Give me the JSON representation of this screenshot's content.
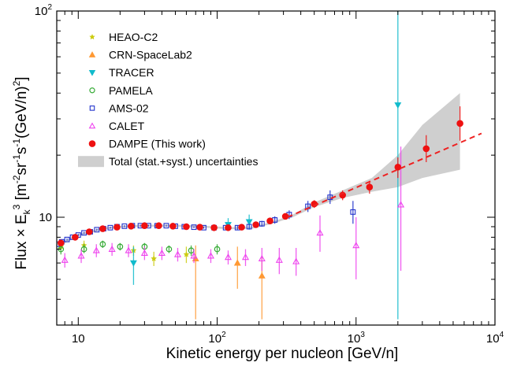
{
  "chart_data": {
    "type": "scatter",
    "title": "",
    "xlabel": "Kinetic energy per nucleon [GeV/n]",
    "ylabel": "Flux × E_k^3 [m^-2 sr^-1 s^-1 (GeV/n)^2]",
    "ylabel_parts": [
      "Flux × E",
      "k",
      "3",
      " [m",
      "-2",
      "sr",
      "-1",
      "s",
      "-1",
      "(GeV/n)",
      "2",
      "]"
    ],
    "xscale": "log",
    "yscale": "log",
    "xlim": [
      7,
      10000
    ],
    "ylim": [
      3,
      100
    ],
    "x_ticks": [
      {
        "value": 10,
        "label": "10"
      },
      {
        "value": 100,
        "label": "10",
        "sup": "2"
      },
      {
        "value": 1000,
        "label": "10",
        "sup": "3"
      },
      {
        "value": 10000,
        "label": "10",
        "sup": "4"
      }
    ],
    "y_ticks": [
      {
        "value": 10,
        "label": "10"
      },
      {
        "value": 100,
        "label": "10",
        "sup": "2"
      }
    ],
    "legend_position": "top-left",
    "uncertainty_band": {
      "label": "Total (stat.+syst.) uncertainties",
      "color": "#cfcfcf",
      "x": [
        7.5,
        10,
        15,
        20,
        30,
        50,
        80,
        120,
        180,
        250,
        350,
        500,
        800,
        1300,
        2000,
        3000,
        5600
      ],
      "lower": [
        7.3,
        8.1,
        8.7,
        8.9,
        9.0,
        9.0,
        8.9,
        8.75,
        8.8,
        9.3,
        10.0,
        11.2,
        12.4,
        13.3,
        14.0,
        15.5,
        17.0
      ],
      "upper": [
        7.5,
        8.3,
        8.9,
        9.1,
        9.2,
        9.2,
        9.1,
        8.95,
        9.0,
        9.5,
        10.3,
        11.8,
        13.5,
        15.5,
        20.0,
        28.0,
        40.0
      ]
    },
    "fit_line": {
      "color": "#ee2222",
      "x": [
        320,
        8000
      ],
      "y": [
        10.0,
        25.5
      ]
    },
    "series": [
      {
        "name": "HEAO-C2",
        "marker": "star",
        "color": "#cccc11",
        "points": [
          [
            7.5,
            7.2,
            6.9,
            7.5
          ],
          [
            11,
            7.3,
            6.9,
            7.7
          ],
          [
            25,
            6.9,
            6.5,
            7.3
          ],
          [
            35,
            6.3,
            5.8,
            6.8
          ],
          [
            60,
            6.6,
            6.0,
            7.2
          ]
        ]
      },
      {
        "name": "CRN-SpaceLab2",
        "marker": "triangle-up",
        "color": "#ff9933",
        "points": [
          [
            70,
            6.3,
            3.2,
            7.3
          ],
          [
            140,
            6.0,
            4.5,
            7.2
          ],
          [
            210,
            5.2,
            3.2,
            6.5
          ]
        ]
      },
      {
        "name": "TRACER",
        "marker": "triangle-down",
        "color": "#11bbcc",
        "points": [
          [
            25,
            6.0,
            4.7,
            7.2
          ],
          [
            120,
            9.2,
            8.6,
            9.9
          ],
          [
            170,
            9.5,
            8.7,
            10.3
          ],
          [
            2000,
            35,
            3.2,
            100
          ]
        ]
      },
      {
        "name": "PAMELA",
        "marker": "circle-open",
        "color": "#33aa33",
        "points": [
          [
            7.5,
            7.0,
            6.6,
            7.5
          ],
          [
            11,
            7.0,
            6.7,
            7.4
          ],
          [
            15,
            7.4,
            7.1,
            7.7
          ],
          [
            20,
            7.2,
            6.9,
            7.5
          ],
          [
            30,
            7.2,
            6.9,
            7.5
          ],
          [
            45,
            7.0,
            6.7,
            7.3
          ],
          [
            65,
            6.9,
            6.5,
            7.3
          ],
          [
            100,
            7.0,
            6.6,
            7.4
          ]
        ]
      },
      {
        "name": "AMS-02",
        "marker": "square-open",
        "color": "#2233cc",
        "points": [
          [
            7.0,
            7.4,
            7.3,
            7.5
          ],
          [
            7.6,
            7.6,
            7.5,
            7.7
          ],
          [
            8.3,
            7.8,
            7.7,
            7.9
          ],
          [
            9.1,
            8.0,
            7.9,
            8.1
          ],
          [
            10,
            8.2,
            8.1,
            8.3
          ],
          [
            11,
            8.4,
            8.3,
            8.5
          ],
          [
            12.2,
            8.5,
            8.4,
            8.6
          ],
          [
            13.6,
            8.7,
            8.6,
            8.8
          ],
          [
            15.2,
            8.8,
            8.7,
            8.9
          ],
          [
            17,
            8.9,
            8.8,
            9.0
          ],
          [
            19,
            9.0,
            8.9,
            9.1
          ],
          [
            21.5,
            9.05,
            8.95,
            9.15
          ],
          [
            24.5,
            9.1,
            9.0,
            9.2
          ],
          [
            28,
            9.1,
            9.0,
            9.2
          ],
          [
            32,
            9.1,
            9.0,
            9.2
          ],
          [
            37,
            9.1,
            9.0,
            9.2
          ],
          [
            43,
            9.1,
            9.0,
            9.2
          ],
          [
            50,
            9.05,
            8.95,
            9.15
          ],
          [
            58,
            9.0,
            8.9,
            9.1
          ],
          [
            68,
            8.95,
            8.85,
            9.05
          ],
          [
            80,
            8.9,
            8.8,
            9.0
          ],
          [
            95,
            8.9,
            8.8,
            9.0
          ],
          [
            115,
            8.9,
            8.75,
            9.05
          ],
          [
            140,
            8.9,
            8.7,
            9.1
          ],
          [
            170,
            9.0,
            8.75,
            9.25
          ],
          [
            210,
            9.3,
            9.0,
            9.6
          ],
          [
            260,
            9.7,
            9.3,
            10.1
          ],
          [
            330,
            10.3,
            9.8,
            10.8
          ],
          [
            450,
            11.3,
            10.6,
            12.0
          ],
          [
            650,
            12.5,
            11.6,
            13.5
          ],
          [
            950,
            10.6,
            9.3,
            12.0
          ]
        ]
      },
      {
        "name": "CALET",
        "marker": "triangle-open",
        "color": "#ee44ee",
        "points": [
          [
            8,
            6.2,
            5.7,
            6.7
          ],
          [
            10.5,
            6.5,
            6.0,
            7.0
          ],
          [
            13.5,
            6.9,
            6.4,
            7.4
          ],
          [
            17.5,
            7.0,
            6.5,
            7.5
          ],
          [
            23,
            6.9,
            6.4,
            7.4
          ],
          [
            30,
            6.7,
            6.2,
            7.2
          ],
          [
            40,
            6.7,
            6.2,
            7.2
          ],
          [
            52,
            6.6,
            6.1,
            7.1
          ],
          [
            68,
            6.5,
            6.0,
            7.0
          ],
          [
            90,
            6.5,
            6.0,
            7.0
          ],
          [
            120,
            6.4,
            5.9,
            6.9
          ],
          [
            160,
            6.4,
            5.8,
            7.0
          ],
          [
            210,
            6.3,
            5.5,
            7.1
          ],
          [
            280,
            6.2,
            5.3,
            7.1
          ],
          [
            370,
            6.1,
            5.2,
            7.1
          ],
          [
            550,
            8.4,
            6.8,
            10.2
          ],
          [
            1000,
            7.3,
            5.0,
            10.0
          ],
          [
            2100,
            11.5,
            5.5,
            22.0
          ]
        ]
      },
      {
        "name": "DAMPE (This work)",
        "marker": "circle-filled",
        "color": "#ee1111",
        "points": [
          [
            7.5,
            7.5,
            7.4,
            7.6
          ],
          [
            9.5,
            8.0,
            7.9,
            8.1
          ],
          [
            12,
            8.5,
            8.4,
            8.6
          ],
          [
            15,
            8.8,
            8.7,
            8.9
          ],
          [
            19,
            8.95,
            8.85,
            9.05
          ],
          [
            24,
            9.05,
            8.95,
            9.15
          ],
          [
            30,
            9.1,
            9.0,
            9.2
          ],
          [
            38,
            9.1,
            9.0,
            9.2
          ],
          [
            48,
            9.05,
            8.95,
            9.15
          ],
          [
            60,
            9.0,
            8.9,
            9.1
          ],
          [
            75,
            8.95,
            8.85,
            9.05
          ],
          [
            95,
            8.9,
            8.8,
            9.0
          ],
          [
            120,
            8.9,
            8.8,
            9.0
          ],
          [
            150,
            8.95,
            8.85,
            9.05
          ],
          [
            190,
            9.2,
            9.05,
            9.35
          ],
          [
            240,
            9.6,
            9.4,
            9.8
          ],
          [
            310,
            10.1,
            9.85,
            10.35
          ],
          [
            500,
            11.6,
            11.1,
            12.1
          ],
          [
            800,
            12.8,
            12.1,
            13.5
          ],
          [
            1250,
            14.0,
            13.0,
            15.0
          ],
          [
            2000,
            17.5,
            15.5,
            19.5
          ],
          [
            3200,
            21.5,
            18.5,
            25.0
          ],
          [
            5600,
            28.5,
            23.5,
            34.5
          ]
        ]
      }
    ]
  }
}
